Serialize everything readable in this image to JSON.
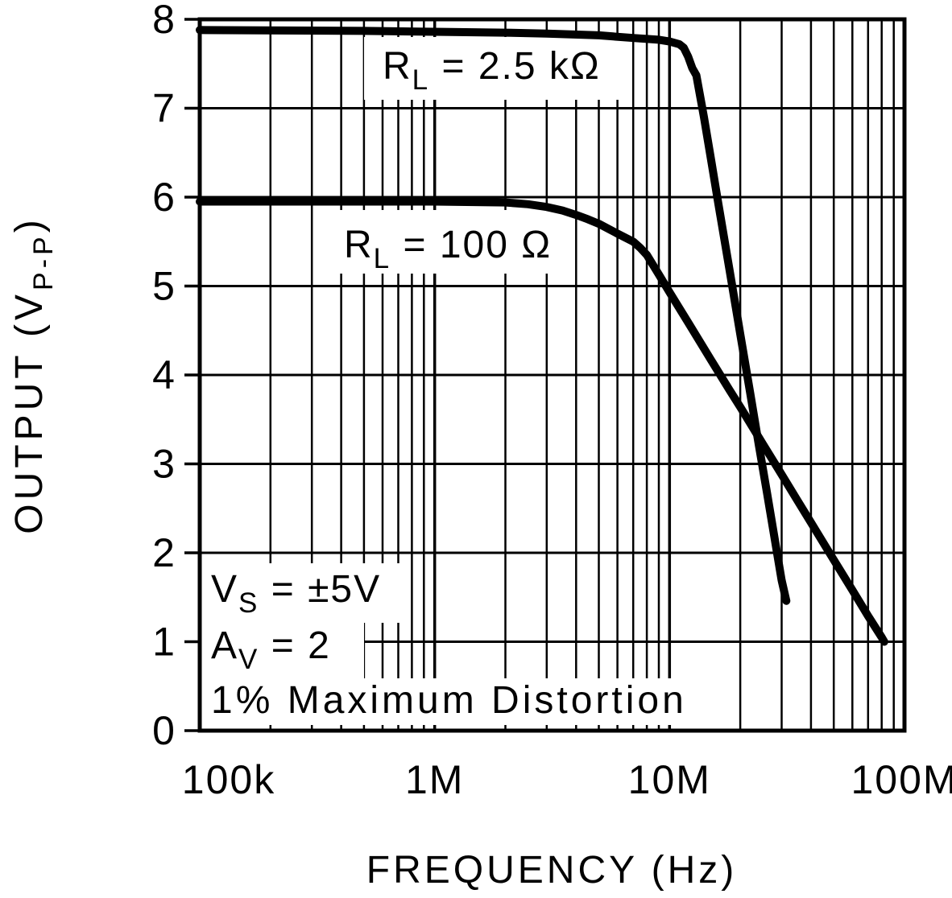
{
  "figure": {
    "background": "#ffffff",
    "ink": "#000000"
  },
  "chart_data": {
    "type": "line",
    "title": "",
    "xlabel": "FREQUENCY (Hz)",
    "ylabel": {
      "pre": "OUTPUT (V",
      "sub": "P-P",
      "post": ")"
    },
    "x_scale": "log",
    "x_range": [
      100000,
      100000000
    ],
    "y_range": [
      0,
      8
    ],
    "grid": "log minor vertical grid on; horizontal gridlines at each integer",
    "legend_position": "inline-curve-labels",
    "x_ticks": [
      {
        "value": 100000,
        "label": "100k"
      },
      {
        "value": 1000000,
        "label": "1M"
      },
      {
        "value": 10000000,
        "label": "10M"
      },
      {
        "value": 100000000,
        "label": "100M"
      }
    ],
    "y_ticks": [
      {
        "value": 0,
        "label": "0"
      },
      {
        "value": 1,
        "label": "1"
      },
      {
        "value": 2,
        "label": "2"
      },
      {
        "value": 3,
        "label": "3"
      },
      {
        "value": 4,
        "label": "4"
      },
      {
        "value": 5,
        "label": "5"
      },
      {
        "value": 6,
        "label": "6"
      },
      {
        "value": 7,
        "label": "7"
      },
      {
        "value": 8,
        "label": "8"
      }
    ],
    "series": [
      {
        "id": "rl-2.5k",
        "label": {
          "pre": "R",
          "sub": "L",
          "post": " = 2.5 kΩ"
        },
        "points": [
          [
            100000,
            7.88
          ],
          [
            500000,
            7.87
          ],
          [
            1000000,
            7.86
          ],
          [
            2000000,
            7.85
          ],
          [
            3000000,
            7.84
          ],
          [
            5000000,
            7.82
          ],
          [
            7000000,
            7.79
          ],
          [
            9000000,
            7.77
          ],
          [
            10000000,
            7.75
          ],
          [
            11000000,
            7.72
          ],
          [
            11500000,
            7.68
          ],
          [
            12000000,
            7.58
          ],
          [
            12500000,
            7.45
          ],
          [
            13000000,
            7.37
          ],
          [
            14000000,
            6.9
          ],
          [
            15000000,
            6.43
          ],
          [
            16000000,
            5.98
          ],
          [
            18000000,
            5.18
          ],
          [
            20000000,
            4.46
          ],
          [
            22000000,
            3.81
          ],
          [
            24000000,
            3.21
          ],
          [
            26000000,
            2.67
          ],
          [
            28000000,
            2.16
          ],
          [
            30000000,
            1.69
          ],
          [
            31400000,
            1.46
          ]
        ]
      },
      {
        "id": "rl-100",
        "label": {
          "pre": "R",
          "sub": "L",
          "post": " = 100 Ω"
        },
        "points": [
          [
            100000,
            5.95
          ],
          [
            1000000,
            5.95
          ],
          [
            2000000,
            5.94
          ],
          [
            2500000,
            5.92
          ],
          [
            3000000,
            5.89
          ],
          [
            3500000,
            5.85
          ],
          [
            4000000,
            5.8
          ],
          [
            4500000,
            5.75
          ],
          [
            5000000,
            5.7
          ],
          [
            6000000,
            5.59
          ],
          [
            7000000,
            5.5
          ],
          [
            7500000,
            5.43
          ],
          [
            8000000,
            5.35
          ],
          [
            9000000,
            5.13
          ],
          [
            10000000,
            4.93
          ],
          [
            12000000,
            4.59
          ],
          [
            15000000,
            4.17
          ],
          [
            18000000,
            3.83
          ],
          [
            20000000,
            3.64
          ],
          [
            25000000,
            3.22
          ],
          [
            30000000,
            2.88
          ],
          [
            35000000,
            2.59
          ],
          [
            40000000,
            2.34
          ],
          [
            50000000,
            1.92
          ],
          [
            60000000,
            1.58
          ],
          [
            70000000,
            1.29
          ],
          [
            80000000,
            1.05
          ],
          [
            82000000,
            1.0
          ]
        ]
      }
    ],
    "annotations": [
      {
        "pre": "V",
        "sub": "S",
        "post": " = ±5V"
      },
      {
        "pre": "A",
        "sub": "V",
        "post": " = 2"
      },
      {
        "pre": "1% Maximum Distortion",
        "sub": "",
        "post": ""
      }
    ]
  }
}
